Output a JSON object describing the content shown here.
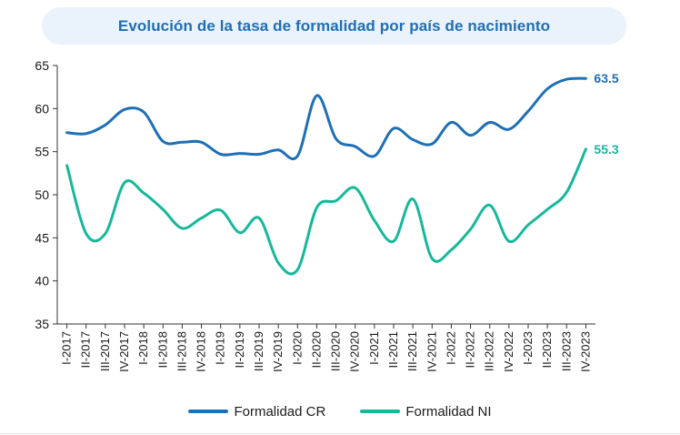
{
  "header": {
    "title": "Evolución de la tasa de formalidad por país de nacimiento"
  },
  "colors": {
    "cr": "#1f6fb5",
    "ni": "#16b89a",
    "axis": "#333333",
    "title_bg": "#eaf2fb"
  },
  "chart_data": {
    "type": "line",
    "title": "Evolución de la tasa de formalidad por país de nacimiento",
    "xlabel": "",
    "ylabel": "",
    "ylim": [
      35,
      65
    ],
    "yticks": [
      35,
      40,
      45,
      50,
      55,
      60,
      65
    ],
    "grid": false,
    "legend_position": "bottom",
    "categories": [
      "I-2017",
      "II-2017",
      "III-2017",
      "IV-2017",
      "I-2018",
      "II-2018",
      "III-2018",
      "IV-2018",
      "I-2019",
      "II-2019",
      "III-2019",
      "IV-2019",
      "I-2020",
      "II-2020",
      "III-2020",
      "IV-2020",
      "I-2021",
      "II-2021",
      "III-2021",
      "IV-2021",
      "I-2022",
      "II-2022",
      "III-2022",
      "IV-2022",
      "I-2023",
      "II-2023",
      "III-2023",
      "IV-2023"
    ],
    "series": [
      {
        "name": "Formalidad CR",
        "end_label": "63.5",
        "values": [
          57.2,
          57.1,
          58.1,
          59.9,
          59.6,
          56.2,
          56.1,
          56.1,
          54.7,
          54.8,
          54.7,
          55.2,
          54.5,
          61.5,
          56.5,
          55.6,
          54.5,
          57.7,
          56.4,
          55.9,
          58.4,
          56.9,
          58.4,
          57.6,
          59.7,
          62.3,
          63.4,
          63.5
        ]
      },
      {
        "name": "Formalidad NI",
        "end_label": "55.3",
        "values": [
          53.4,
          45.5,
          45.5,
          51.4,
          50.2,
          48.3,
          46.1,
          47.3,
          48.2,
          45.6,
          47.3,
          42.1,
          41.3,
          48.5,
          49.3,
          50.8,
          47.0,
          44.6,
          49.5,
          42.6,
          43.6,
          46.0,
          48.8,
          44.6,
          46.5,
          48.3,
          50.3,
          55.3
        ]
      }
    ]
  }
}
